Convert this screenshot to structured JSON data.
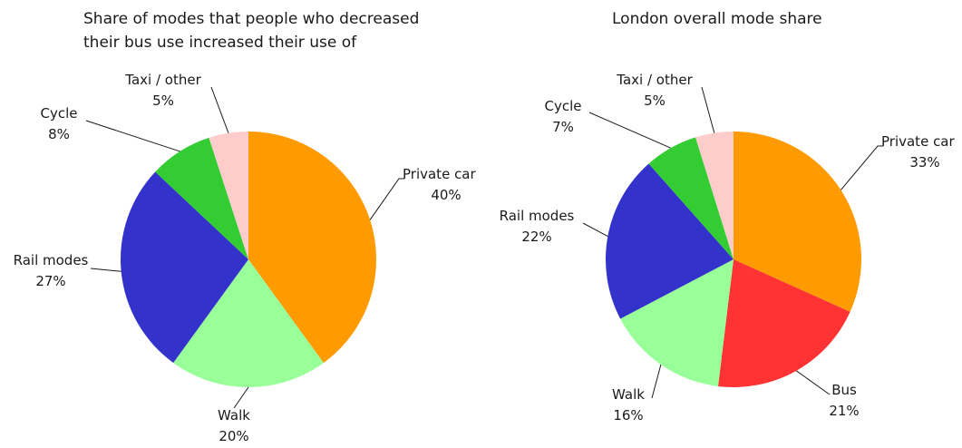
{
  "chart_data": [
    {
      "type": "pie",
      "title": "Share of modes that people who decreased\ntheir bus use increased their use of",
      "slices": [
        {
          "label": "Private car",
          "value": 40,
          "value_label": "40%",
          "color": "#ff9a00"
        },
        {
          "label": "Walk",
          "value": 20,
          "value_label": "20%",
          "color": "#99ff99"
        },
        {
          "label": "Rail modes",
          "value": 27,
          "value_label": "27%",
          "color": "#3333cc"
        },
        {
          "label": "Cycle",
          "value": 8,
          "value_label": "8%",
          "color": "#33cc33"
        },
        {
          "label": "Taxi / other",
          "value": 5,
          "value_label": "5%",
          "color": "#ffcccc"
        }
      ]
    },
    {
      "type": "pie",
      "title": "London overall mode share",
      "slices": [
        {
          "label": "Private car",
          "value": 33,
          "value_label": "33%",
          "color": "#ff9a00"
        },
        {
          "label": "Bus",
          "value": 21,
          "value_label": "21%",
          "color": "#ff3333"
        },
        {
          "label": "Walk",
          "value": 16,
          "value_label": "16%",
          "color": "#99ff99"
        },
        {
          "label": "Rail modes",
          "value": 22,
          "value_label": "22%",
          "color": "#3333cc"
        },
        {
          "label": "Cycle",
          "value": 7,
          "value_label": "7%",
          "color": "#33cc33"
        },
        {
          "label": "Taxi / other",
          "value": 5,
          "value_label": "5%",
          "color": "#ffcccc"
        }
      ]
    }
  ]
}
